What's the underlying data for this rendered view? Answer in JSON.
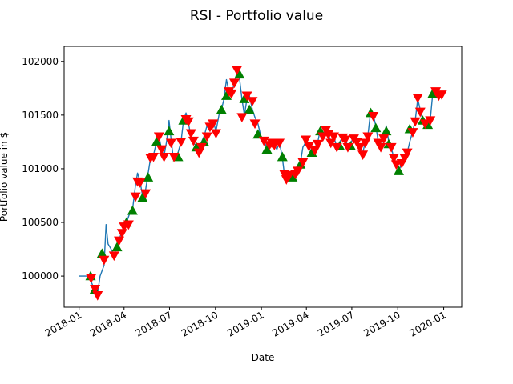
{
  "chart_data": {
    "type": "line",
    "title": "RSI - Portfolio value",
    "xlabel": "Date",
    "ylabel": "Portfolio value in $",
    "xlim": [
      "2017-12-02",
      "2020-02-06"
    ],
    "ylim": [
      99710,
      102140
    ],
    "grid": false,
    "x_ticks": [
      "2018-01",
      "2018-04",
      "2018-07",
      "2018-10",
      "2019-01",
      "2019-04",
      "2019-07",
      "2019-10",
      "2020-01"
    ],
    "y_ticks": [
      100000,
      100500,
      101000,
      101500,
      102000
    ],
    "colors": {
      "line": "#1f77b4",
      "buy": "#008000",
      "sell": "#ff0000"
    },
    "series": [
      {
        "kind": "line",
        "points": [
          [
            "2018-01-01",
            100000
          ],
          [
            "2018-01-15",
            100000
          ],
          [
            "2018-01-24",
            100000
          ],
          [
            "2018-01-25",
            99950
          ],
          [
            "2018-02-01",
            99870
          ],
          [
            "2018-02-07",
            99840
          ],
          [
            "2018-02-12",
            100000
          ],
          [
            "2018-02-20",
            100100
          ],
          [
            "2018-02-24",
            100480
          ],
          [
            "2018-02-28",
            100300
          ],
          [
            "2018-03-05",
            100260
          ],
          [
            "2018-03-12",
            100200
          ],
          [
            "2018-03-18",
            100280
          ],
          [
            "2018-03-25",
            100380
          ],
          [
            "2018-04-01",
            100430
          ],
          [
            "2018-04-06",
            100500
          ],
          [
            "2018-04-12",
            100580
          ],
          [
            "2018-04-18",
            100620
          ],
          [
            "2018-04-24",
            100850
          ],
          [
            "2018-04-28",
            100960
          ],
          [
            "2018-05-03",
            100880
          ],
          [
            "2018-05-08",
            100750
          ],
          [
            "2018-05-14",
            100800
          ],
          [
            "2018-05-19",
            100950
          ],
          [
            "2018-05-24",
            101100
          ],
          [
            "2018-05-30",
            101130
          ],
          [
            "2018-06-05",
            101250
          ],
          [
            "2018-06-10",
            101300
          ],
          [
            "2018-06-15",
            101180
          ],
          [
            "2018-06-20",
            101120
          ],
          [
            "2018-06-25",
            101250
          ],
          [
            "2018-06-30",
            101450
          ],
          [
            "2018-07-04",
            101280
          ],
          [
            "2018-07-08",
            101120
          ],
          [
            "2018-07-13",
            101100
          ],
          [
            "2018-07-18",
            101150
          ],
          [
            "2018-07-24",
            101250
          ],
          [
            "2018-07-29",
            101450
          ],
          [
            "2018-08-03",
            101520
          ],
          [
            "2018-08-08",
            101420
          ],
          [
            "2018-08-13",
            101300
          ],
          [
            "2018-08-18",
            101250
          ],
          [
            "2018-08-24",
            101200
          ],
          [
            "2018-08-29",
            101150
          ],
          [
            "2018-09-03",
            101250
          ],
          [
            "2018-09-08",
            101300
          ],
          [
            "2018-09-14",
            101400
          ],
          [
            "2018-09-20",
            101350
          ],
          [
            "2018-09-26",
            101450
          ],
          [
            "2018-10-02",
            101350
          ],
          [
            "2018-10-08",
            101500
          ],
          [
            "2018-10-13",
            101550
          ],
          [
            "2018-10-18",
            101650
          ],
          [
            "2018-10-23",
            101830
          ],
          [
            "2018-10-28",
            101720
          ],
          [
            "2018-11-02",
            101700
          ],
          [
            "2018-11-08",
            101800
          ],
          [
            "2018-11-13",
            101900
          ],
          [
            "2018-11-18",
            101850
          ],
          [
            "2018-11-23",
            101650
          ],
          [
            "2018-11-28",
            101500
          ],
          [
            "2018-12-03",
            101650
          ],
          [
            "2018-12-08",
            101680
          ],
          [
            "2018-12-14",
            101550
          ],
          [
            "2018-12-19",
            101480
          ],
          [
            "2018-12-25",
            101420
          ],
          [
            "2018-12-31",
            101300
          ],
          [
            "2019-01-06",
            101250
          ],
          [
            "2019-01-12",
            101200
          ],
          [
            "2019-01-17",
            101220
          ],
          [
            "2019-01-22",
            101250
          ],
          [
            "2019-01-27",
            101220
          ],
          [
            "2019-02-01",
            101180
          ],
          [
            "2019-02-06",
            101250
          ],
          [
            "2019-02-12",
            101100
          ],
          [
            "2019-02-16",
            100950
          ],
          [
            "2019-02-20",
            100900
          ],
          [
            "2019-02-26",
            100950
          ],
          [
            "2019-03-04",
            100920
          ],
          [
            "2019-03-10",
            100950
          ],
          [
            "2019-03-15",
            101000
          ],
          [
            "2019-03-20",
            101050
          ],
          [
            "2019-03-25",
            101200
          ],
          [
            "2019-03-31",
            101250
          ],
          [
            "2019-04-06",
            101200
          ],
          [
            "2019-04-12",
            101150
          ],
          [
            "2019-04-18",
            101200
          ],
          [
            "2019-04-24",
            101250
          ],
          [
            "2019-04-29",
            101370
          ],
          [
            "2019-05-04",
            101300
          ],
          [
            "2019-05-10",
            101380
          ],
          [
            "2019-05-15",
            101330
          ],
          [
            "2019-05-20",
            101250
          ],
          [
            "2019-05-26",
            101300
          ],
          [
            "2019-06-01",
            101200
          ],
          [
            "2019-06-07",
            101250
          ],
          [
            "2019-06-13",
            101300
          ],
          [
            "2019-06-18",
            101280
          ],
          [
            "2019-06-23",
            101200
          ],
          [
            "2019-06-29",
            101250
          ],
          [
            "2019-07-05",
            101280
          ],
          [
            "2019-07-11",
            101260
          ],
          [
            "2019-07-17",
            101200
          ],
          [
            "2019-07-23",
            101150
          ],
          [
            "2019-07-28",
            101250
          ],
          [
            "2019-08-02",
            101300
          ],
          [
            "2019-08-08",
            101550
          ],
          [
            "2019-08-13",
            101500
          ],
          [
            "2019-08-18",
            101400
          ],
          [
            "2019-08-23",
            101250
          ],
          [
            "2019-08-28",
            101200
          ],
          [
            "2019-09-03",
            101300
          ],
          [
            "2019-09-08",
            101400
          ],
          [
            "2019-09-13",
            101250
          ],
          [
            "2019-09-18",
            101200
          ],
          [
            "2019-09-23",
            101100
          ],
          [
            "2019-09-28",
            101050
          ],
          [
            "2019-10-03",
            100980
          ],
          [
            "2019-10-09",
            101050
          ],
          [
            "2019-10-15",
            101100
          ],
          [
            "2019-10-20",
            101150
          ],
          [
            "2019-10-25",
            101250
          ],
          [
            "2019-10-31",
            101350
          ],
          [
            "2019-11-05",
            101450
          ],
          [
            "2019-11-10",
            101650
          ],
          [
            "2019-11-15",
            101550
          ],
          [
            "2019-11-20",
            101450
          ],
          [
            "2019-11-25",
            101420
          ],
          [
            "2019-11-30",
            101400
          ],
          [
            "2019-12-05",
            101450
          ],
          [
            "2019-12-10",
            101700
          ],
          [
            "2019-12-16",
            101720
          ],
          [
            "2019-12-22",
            101680
          ],
          [
            "2019-12-28",
            101700
          ]
        ]
      },
      {
        "name": "buy",
        "kind": "marker",
        "marker": "triangle-up",
        "points": [
          [
            "2018-01-24",
            100000
          ],
          [
            "2018-02-01",
            99870
          ],
          [
            "2018-02-16",
            100210
          ],
          [
            "2018-03-18",
            100270
          ],
          [
            "2018-04-06",
            100500
          ],
          [
            "2018-04-18",
            100610
          ],
          [
            "2018-05-08",
            100730
          ],
          [
            "2018-05-19",
            100920
          ],
          [
            "2018-06-05",
            101250
          ],
          [
            "2018-06-30",
            101350
          ],
          [
            "2018-07-18",
            101110
          ],
          [
            "2018-07-29",
            101450
          ],
          [
            "2018-08-24",
            101200
          ],
          [
            "2018-09-08",
            101250
          ],
          [
            "2018-10-13",
            101550
          ],
          [
            "2018-10-23",
            101680
          ],
          [
            "2018-11-18",
            101880
          ],
          [
            "2018-11-28",
            101650
          ],
          [
            "2018-12-08",
            101550
          ],
          [
            "2018-12-25",
            101320
          ],
          [
            "2019-01-12",
            101180
          ],
          [
            "2019-02-12",
            101110
          ],
          [
            "2019-03-04",
            100920
          ],
          [
            "2019-03-20",
            101040
          ],
          [
            "2019-04-12",
            101150
          ],
          [
            "2019-04-29",
            101350
          ],
          [
            "2019-06-07",
            101210
          ],
          [
            "2019-06-29",
            101210
          ],
          [
            "2019-08-08",
            101520
          ],
          [
            "2019-08-18",
            101380
          ],
          [
            "2019-09-08",
            101350
          ],
          [
            "2019-09-13",
            101230
          ],
          [
            "2019-10-03",
            100980
          ],
          [
            "2019-10-25",
            101370
          ],
          [
            "2019-11-20",
            101450
          ],
          [
            "2019-11-30",
            101410
          ],
          [
            "2019-12-10",
            101700
          ]
        ]
      },
      {
        "name": "sell",
        "kind": "marker",
        "marker": "triangle-down",
        "points": [
          [
            "2018-01-25",
            99980
          ],
          [
            "2018-02-02",
            99880
          ],
          [
            "2018-02-07",
            99820
          ],
          [
            "2018-02-20",
            100150
          ],
          [
            "2018-03-12",
            100190
          ],
          [
            "2018-03-22",
            100330
          ],
          [
            "2018-03-28",
            100400
          ],
          [
            "2018-04-01",
            100460
          ],
          [
            "2018-04-10",
            100480
          ],
          [
            "2018-04-24",
            100740
          ],
          [
            "2018-04-28",
            100880
          ],
          [
            "2018-05-03",
            100870
          ],
          [
            "2018-05-14",
            100770
          ],
          [
            "2018-05-24",
            101100
          ],
          [
            "2018-05-30",
            101110
          ],
          [
            "2018-06-10",
            101300
          ],
          [
            "2018-06-15",
            101180
          ],
          [
            "2018-06-20",
            101110
          ],
          [
            "2018-07-04",
            101240
          ],
          [
            "2018-07-10",
            101110
          ],
          [
            "2018-07-24",
            101250
          ],
          [
            "2018-08-03",
            101460
          ],
          [
            "2018-08-08",
            101440
          ],
          [
            "2018-08-13",
            101330
          ],
          [
            "2018-08-18",
            101260
          ],
          [
            "2018-08-29",
            101150
          ],
          [
            "2018-09-03",
            101200
          ],
          [
            "2018-09-14",
            101300
          ],
          [
            "2018-09-20",
            101390
          ],
          [
            "2018-09-26",
            101420
          ],
          [
            "2018-10-02",
            101330
          ],
          [
            "2018-10-28",
            101720
          ],
          [
            "2018-11-02",
            101700
          ],
          [
            "2018-11-08",
            101800
          ],
          [
            "2018-11-13",
            101920
          ],
          [
            "2018-11-23",
            101480
          ],
          [
            "2018-12-03",
            101680
          ],
          [
            "2018-12-14",
            101630
          ],
          [
            "2018-12-19",
            101420
          ],
          [
            "2019-01-06",
            101260
          ],
          [
            "2019-01-17",
            101220
          ],
          [
            "2019-01-22",
            101240
          ],
          [
            "2019-01-27",
            101220
          ],
          [
            "2019-02-06",
            101240
          ],
          [
            "2019-02-16",
            100950
          ],
          [
            "2019-02-20",
            100900
          ],
          [
            "2019-02-26",
            100940
          ],
          [
            "2019-03-10",
            100950
          ],
          [
            "2019-03-15",
            100980
          ],
          [
            "2019-03-25",
            101060
          ],
          [
            "2019-03-31",
            101270
          ],
          [
            "2019-04-06",
            101210
          ],
          [
            "2019-04-18",
            101170
          ],
          [
            "2019-04-24",
            101230
          ],
          [
            "2019-05-04",
            101300
          ],
          [
            "2019-05-10",
            101360
          ],
          [
            "2019-05-15",
            101320
          ],
          [
            "2019-05-20",
            101240
          ],
          [
            "2019-05-26",
            101300
          ],
          [
            "2019-06-01",
            101200
          ],
          [
            "2019-06-13",
            101290
          ],
          [
            "2019-06-18",
            101270
          ],
          [
            "2019-06-23",
            101200
          ],
          [
            "2019-07-05",
            101280
          ],
          [
            "2019-07-11",
            101250
          ],
          [
            "2019-07-17",
            101200
          ],
          [
            "2019-07-23",
            101130
          ],
          [
            "2019-07-28",
            101240
          ],
          [
            "2019-08-02",
            101300
          ],
          [
            "2019-08-13",
            101490
          ],
          [
            "2019-08-23",
            101240
          ],
          [
            "2019-08-28",
            101200
          ],
          [
            "2019-09-03",
            101280
          ],
          [
            "2019-09-18",
            101200
          ],
          [
            "2019-09-23",
            101100
          ],
          [
            "2019-09-28",
            101040
          ],
          [
            "2019-10-09",
            101050
          ],
          [
            "2019-10-15",
            101100
          ],
          [
            "2019-10-20",
            101150
          ],
          [
            "2019-10-31",
            101340
          ],
          [
            "2019-11-05",
            101440
          ],
          [
            "2019-11-10",
            101660
          ],
          [
            "2019-11-15",
            101530
          ],
          [
            "2019-11-25",
            101420
          ],
          [
            "2019-12-05",
            101450
          ],
          [
            "2019-12-16",
            101720
          ],
          [
            "2019-12-22",
            101680
          ],
          [
            "2019-12-28",
            101690
          ]
        ]
      }
    ]
  }
}
